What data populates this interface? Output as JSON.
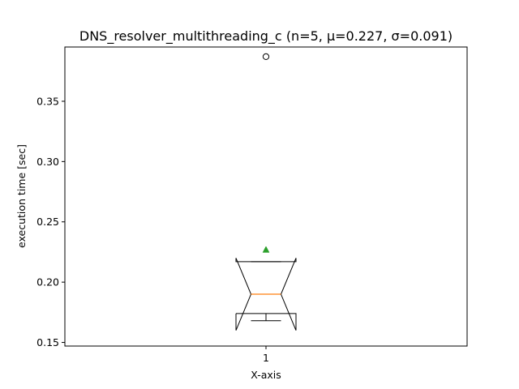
{
  "chart_data": {
    "type": "box",
    "title": "DNS_resolver_multithreading_c (n=5, μ=0.227, σ=0.091)",
    "xlabel": "X-axis",
    "ylabel": "execution time [sec]",
    "categories": [
      "1"
    ],
    "ylim": [
      0.147,
      0.395
    ],
    "yticks": [
      0.15,
      0.2,
      0.25,
      0.3,
      0.35
    ],
    "ytick_labels": [
      "0.15",
      "0.20",
      "0.25",
      "0.30",
      "0.35"
    ],
    "grid": false,
    "notched": true,
    "boxes": [
      {
        "category": "1",
        "whisker_low": 0.168,
        "q1": 0.174,
        "median": 0.19,
        "q3": 0.217,
        "whisker_high": 0.217,
        "notch_low": 0.16,
        "notch_high": 0.22,
        "mean": 0.227,
        "outliers": [
          0.387
        ]
      }
    ],
    "colors": {
      "box": "#000000",
      "median": "#ff7f0e",
      "mean": "#2ca02c",
      "outlier_edge": "#000000"
    }
  }
}
